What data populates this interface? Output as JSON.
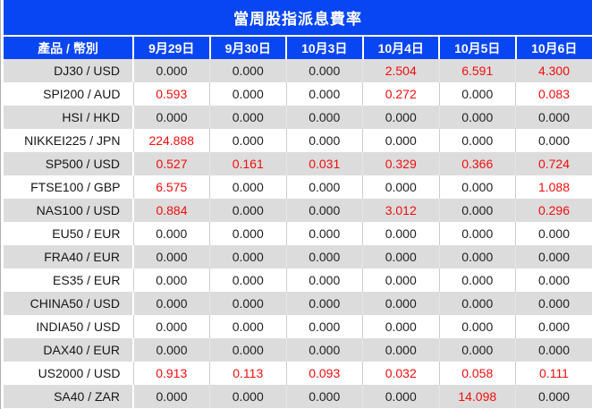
{
  "chart_data": {
    "type": "table",
    "title": "當周股指派息費率",
    "columns": [
      "產品 / 幣別",
      "9月29日",
      "9月30日",
      "10月3日",
      "10月4日",
      "10月5日",
      "10月6日"
    ],
    "rows": [
      {
        "product": "DJ30 / USD",
        "values": [
          "0.000",
          "0.000",
          "0.000",
          "2.504",
          "6.591",
          "4.300"
        ],
        "red_flags": [
          false,
          false,
          false,
          true,
          true,
          true
        ]
      },
      {
        "product": "SPI200 / AUD",
        "values": [
          "0.593",
          "0.000",
          "0.000",
          "0.272",
          "0.000",
          "0.083"
        ],
        "red_flags": [
          true,
          false,
          false,
          true,
          false,
          true
        ]
      },
      {
        "product": "HSI / HKD",
        "values": [
          "0.000",
          "0.000",
          "0.000",
          "0.000",
          "0.000",
          "0.000"
        ],
        "red_flags": [
          false,
          false,
          false,
          false,
          false,
          false
        ]
      },
      {
        "product": "NIKKEI225 / JPN",
        "values": [
          "224.888",
          "0.000",
          "0.000",
          "0.000",
          "0.000",
          "0.000"
        ],
        "red_flags": [
          true,
          false,
          false,
          false,
          false,
          false
        ]
      },
      {
        "product": "SP500 / USD",
        "values": [
          "0.527",
          "0.161",
          "0.031",
          "0.329",
          "0.366",
          "0.724"
        ],
        "red_flags": [
          true,
          true,
          true,
          true,
          true,
          true
        ]
      },
      {
        "product": "FTSE100 / GBP",
        "values": [
          "6.575",
          "0.000",
          "0.000",
          "0.000",
          "0.000",
          "1.088"
        ],
        "red_flags": [
          true,
          false,
          false,
          false,
          false,
          true
        ]
      },
      {
        "product": "NAS100 / USD",
        "values": [
          "0.884",
          "0.000",
          "0.000",
          "3.012",
          "0.000",
          "0.296"
        ],
        "red_flags": [
          true,
          false,
          false,
          true,
          false,
          true
        ]
      },
      {
        "product": "EU50 / EUR",
        "values": [
          "0.000",
          "0.000",
          "0.000",
          "0.000",
          "0.000",
          "0.000"
        ],
        "red_flags": [
          false,
          false,
          false,
          false,
          false,
          false
        ]
      },
      {
        "product": "FRA40 / EUR",
        "values": [
          "0.000",
          "0.000",
          "0.000",
          "0.000",
          "0.000",
          "0.000"
        ],
        "red_flags": [
          false,
          false,
          false,
          false,
          false,
          false
        ]
      },
      {
        "product": "ES35 / EUR",
        "values": [
          "0.000",
          "0.000",
          "0.000",
          "0.000",
          "0.000",
          "0.000"
        ],
        "red_flags": [
          false,
          false,
          false,
          false,
          false,
          false
        ]
      },
      {
        "product": "CHINA50 / USD",
        "values": [
          "0.000",
          "0.000",
          "0.000",
          "0.000",
          "0.000",
          "0.000"
        ],
        "red_flags": [
          false,
          false,
          false,
          false,
          false,
          false
        ]
      },
      {
        "product": "INDIA50 / USD",
        "values": [
          "0.000",
          "0.000",
          "0.000",
          "0.000",
          "0.000",
          "0.000"
        ],
        "red_flags": [
          false,
          false,
          false,
          false,
          false,
          false
        ]
      },
      {
        "product": "DAX40 / EUR",
        "values": [
          "0.000",
          "0.000",
          "0.000",
          "0.000",
          "0.000",
          "0.000"
        ],
        "red_flags": [
          false,
          false,
          false,
          false,
          false,
          false
        ]
      },
      {
        "product": "US2000 / USD",
        "values": [
          "0.913",
          "0.113",
          "0.093",
          "0.032",
          "0.058",
          "0.111"
        ],
        "red_flags": [
          true,
          true,
          true,
          true,
          true,
          true
        ]
      },
      {
        "product": "SA40 / ZAR",
        "values": [
          "0.000",
          "0.000",
          "0.000",
          "0.000",
          "14.098",
          "0.000"
        ],
        "red_flags": [
          false,
          false,
          false,
          false,
          true,
          false
        ]
      }
    ],
    "layout": {
      "legend": "none",
      "grid": "alternating-row-shading"
    }
  },
  "colors": {
    "header_blue": "#0846f4",
    "row_alt_gray": "#dcdcdc",
    "row_white": "#ffffff",
    "value_red": "#f20d0d",
    "value_black": "#1f1f1f",
    "header_text": "#ffffff"
  }
}
